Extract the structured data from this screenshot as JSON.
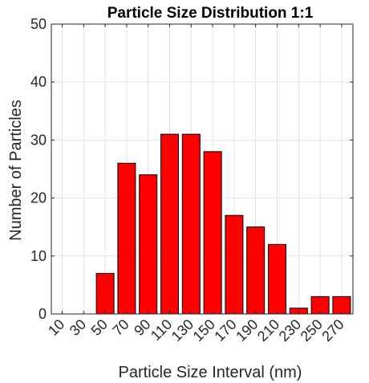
{
  "chart_data": {
    "type": "bar",
    "title": "Particle Size Distribution 1:1",
    "xlabel": "Particle Size Interval (nm)",
    "ylabel": "Number of Particles",
    "categories": [
      "10",
      "30",
      "50",
      "70",
      "90",
      "110",
      "130",
      "150",
      "170",
      "190",
      "210",
      "230",
      "250",
      "270"
    ],
    "values": [
      0,
      0,
      7,
      26,
      24,
      31,
      31,
      28,
      17,
      15,
      12,
      1,
      3,
      3
    ],
    "ylim": [
      0,
      50
    ],
    "yticks": [
      0,
      10,
      20,
      30,
      40,
      50
    ],
    "grid": true,
    "legend": "none",
    "bar_color": "#ff0000",
    "bar_edge_color": "#000000"
  }
}
